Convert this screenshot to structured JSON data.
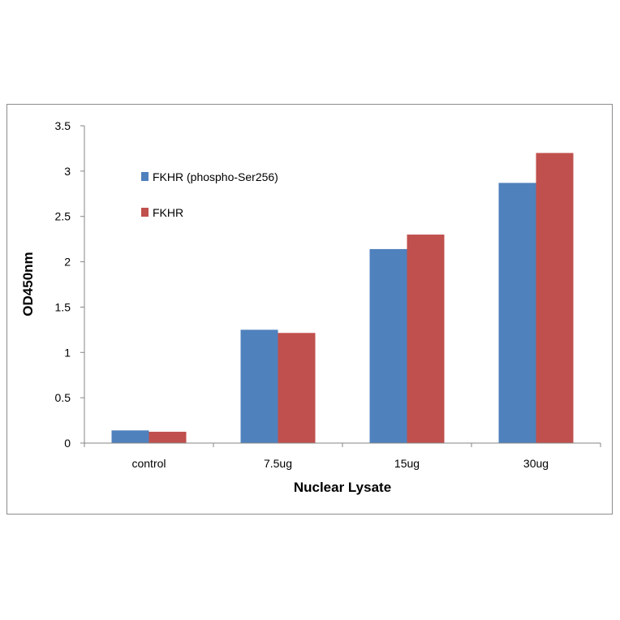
{
  "chart_data": {
    "type": "bar",
    "title": "",
    "xlabel": "Nuclear Lysate",
    "ylabel": "OD450nm",
    "categories": [
      "control",
      "7.5ug",
      "15ug",
      "30ug"
    ],
    "series": [
      {
        "name": "FKHR (phospho-Ser256)",
        "color": "#4f81bd",
        "values": [
          0.14,
          1.25,
          2.14,
          2.87
        ]
      },
      {
        "name": "FKHR",
        "color": "#c0504d",
        "values": [
          0.125,
          1.215,
          2.3,
          3.2
        ]
      }
    ],
    "ylim": [
      0,
      3.5
    ],
    "yticks": [
      "0",
      "0.5",
      "1",
      "1.5",
      "2",
      "2.5",
      "3",
      "3.5"
    ],
    "grid": false,
    "legend": "top-left"
  }
}
